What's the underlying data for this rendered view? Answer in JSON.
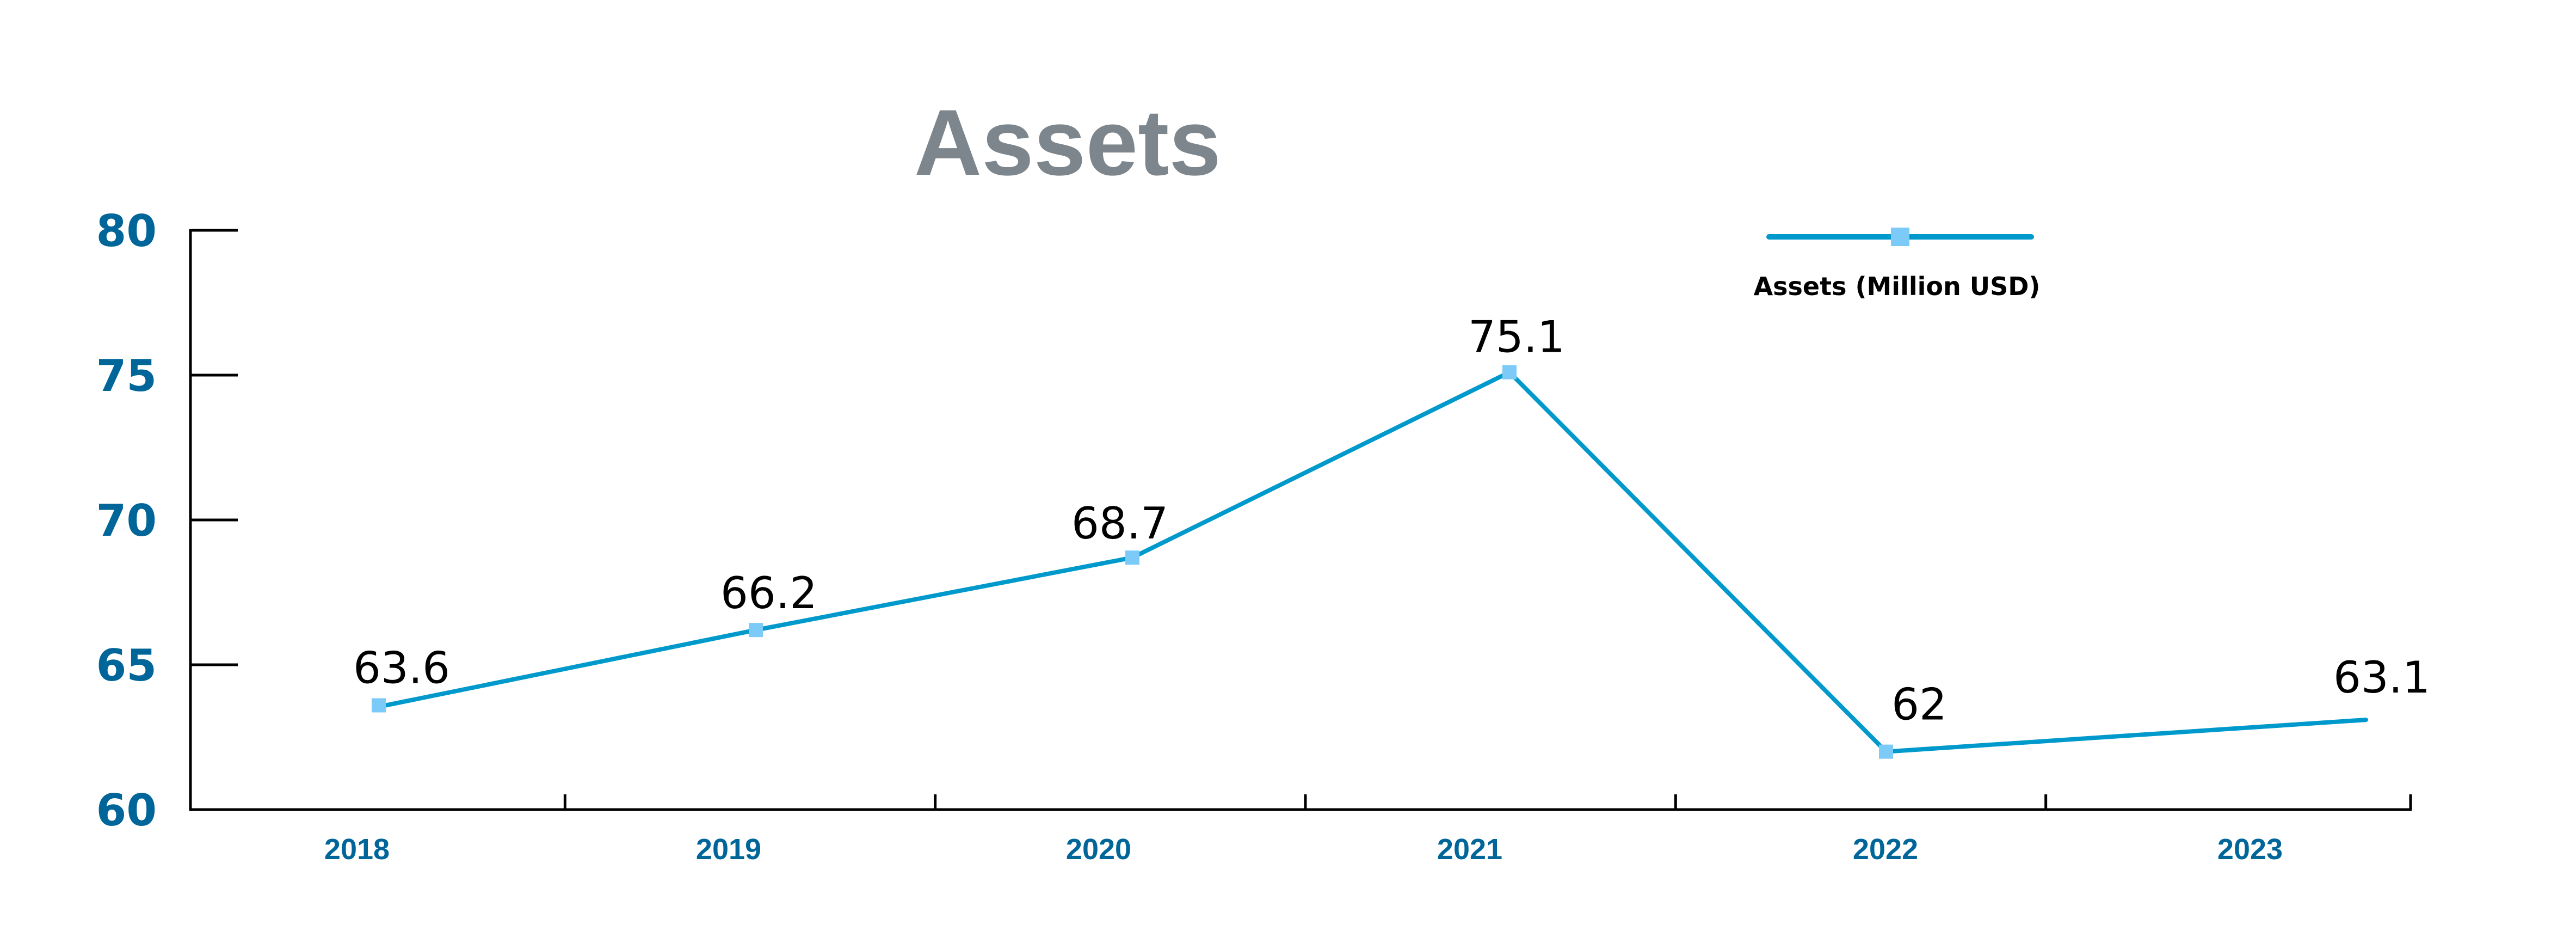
{
  "chart_data": {
    "type": "line",
    "title": "Assets",
    "xlabel": "",
    "ylabel": "",
    "categories": [
      "2018",
      "2019",
      "2020",
      "2021",
      "2022",
      "2023"
    ],
    "series": [
      {
        "name": "Assets (Million USD)",
        "values": [
          63.6,
          66.2,
          68.7,
          75.1,
          62,
          63.1
        ],
        "data_labels": [
          "63.6",
          "66.2",
          "68.7",
          "75.1",
          "62",
          "63.1"
        ],
        "markers": [
          true,
          true,
          true,
          true,
          true,
          false
        ],
        "line_color": "#0099cc",
        "marker_color": "#7ccaf7"
      }
    ],
    "ylim": [
      60,
      80
    ],
    "yticks": [
      60,
      65,
      70,
      75,
      80
    ],
    "ytick_labels": [
      "60",
      "65",
      "70",
      "75",
      "80"
    ],
    "grid": false,
    "legend_position": "top-right"
  },
  "colors": {
    "title": "#7d868c",
    "axis_labels": "#006699",
    "axis_line": "#000000",
    "data_labels": "#000000",
    "legend_text": "#000000"
  },
  "legend": {
    "label": "Assets (Million USD)"
  }
}
